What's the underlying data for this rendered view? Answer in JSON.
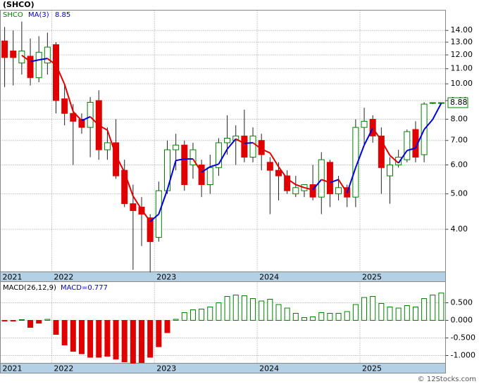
{
  "chart_data": [
    {
      "type": "candlestick",
      "title": "(SHCO)",
      "name": "SHCO",
      "categories": [
        "2021",
        null,
        null,
        null,
        null,
        null,
        "2022",
        null,
        null,
        null,
        null,
        null,
        null,
        null,
        null,
        null,
        null,
        null,
        "2023",
        null,
        null,
        null,
        null,
        null,
        null,
        null,
        null,
        null,
        null,
        null,
        "2024",
        null,
        null,
        null,
        null,
        null,
        null,
        null,
        null,
        null,
        null,
        null,
        "2025",
        null,
        null,
        null,
        null,
        null,
        null,
        null,
        null,
        null
      ],
      "open": [
        13.1,
        12.3,
        11.4,
        11.9,
        10.4,
        11.4,
        12.8,
        9.1,
        8.3,
        8.0,
        7.6,
        9.0,
        6.6,
        6.9,
        5.8,
        4.7,
        4.6,
        4.3,
        3.8,
        5.1,
        6.6,
        6.8,
        6.0,
        6.0,
        5.3,
        5.9,
        6.9,
        7.0,
        7.2,
        6.3,
        7.0,
        6.1,
        5.8,
        5.6,
        5.0,
        5.1,
        5.3,
        4.9,
        6.1,
        5.0,
        5.2,
        4.9,
        7.6,
        8.0,
        7.2,
        5.6,
        6.0,
        6.2,
        7.5,
        6.4,
        8.85,
        8.87
      ],
      "high": [
        14.3,
        14.0,
        14.8,
        13.3,
        13.5,
        13.8,
        13.0,
        10.0,
        8.8,
        8.3,
        9.2,
        9.6,
        7.6,
        8.0,
        6.2,
        5.3,
        4.9,
        4.4,
        5.4,
        7.0,
        7.3,
        7.0,
        6.9,
        6.2,
        6.4,
        7.1,
        8.2,
        7.7,
        8.5,
        7.6,
        7.3,
        6.3,
        6.1,
        5.8,
        5.6,
        5.3,
        6.0,
        6.5,
        6.2,
        5.6,
        5.3,
        8.0,
        8.6,
        8.2,
        7.6,
        6.3,
        6.6,
        7.5,
        7.9,
        8.9,
        8.9,
        8.9
      ],
      "low": [
        9.8,
        9.9,
        10.6,
        9.9,
        10.1,
        10.6,
        8.3,
        7.7,
        6.0,
        7.3,
        6.3,
        6.2,
        6.2,
        5.5,
        4.6,
        3.1,
        3.6,
        3.05,
        3.7,
        5.0,
        5.8,
        5.1,
        5.5,
        4.9,
        5.0,
        5.6,
        6.4,
        6.0,
        6.1,
        6.1,
        5.8,
        4.4,
        4.8,
        5.0,
        4.9,
        4.9,
        4.8,
        4.4,
        4.6,
        4.8,
        4.6,
        4.6,
        6.8,
        6.9,
        5.0,
        4.7,
        5.9,
        6.1,
        6.1,
        6.1,
        8.8,
        8.86
      ],
      "close": [
        11.8,
        11.8,
        12.3,
        10.4,
        12.2,
        12.6,
        9.0,
        8.3,
        7.9,
        7.6,
        8.9,
        6.6,
        6.9,
        5.6,
        4.7,
        4.5,
        4.4,
        3.7,
        5.1,
        6.6,
        6.8,
        5.3,
        6.6,
        5.3,
        5.9,
        6.9,
        7.1,
        7.2,
        6.3,
        7.2,
        6.4,
        5.8,
        5.6,
        5.1,
        5.2,
        5.3,
        4.9,
        6.2,
        5.0,
        5.2,
        4.9,
        7.6,
        7.9,
        7.2,
        5.9,
        6.0,
        6.3,
        7.4,
        6.3,
        8.8,
        8.88,
        8.88
      ],
      "up_color": "#008000",
      "down_color": "#e00000",
      "ma": {
        "name": "MA(3)",
        "up_color": "#0000dd",
        "down_color": "#e00000",
        "values": [
          null,
          null,
          11.97,
          11.5,
          11.63,
          11.73,
          11.27,
          9.97,
          8.4,
          7.93,
          8.13,
          7.7,
          7.47,
          6.37,
          5.73,
          4.93,
          4.53,
          4.2,
          4.4,
          5.13,
          6.17,
          6.23,
          6.23,
          5.73,
          5.93,
          6.03,
          6.63,
          7.07,
          6.87,
          6.9,
          6.63,
          6.47,
          5.93,
          5.5,
          5.3,
          5.2,
          5.13,
          5.47,
          5.37,
          5.47,
          5.03,
          5.9,
          6.8,
          7.57,
          7.0,
          6.37,
          6.07,
          6.57,
          6.67,
          7.5,
          7.99,
          8.85
        ]
      },
      "log_scale": true,
      "grid": true,
      "ylim": [
        3.06,
        15.9
      ],
      "yticks": [
        {
          "value": 4,
          "label": "4.00"
        },
        {
          "value": 5,
          "label": "5.00"
        },
        {
          "value": 6,
          "label": "6.00"
        },
        {
          "value": 7,
          "label": "7.00"
        },
        {
          "value": 8,
          "label": "8.00"
        },
        {
          "value": 9,
          "label": "9.00"
        },
        {
          "value": 10,
          "label": "10.00"
        },
        {
          "value": 11,
          "label": "11.00"
        },
        {
          "value": 12,
          "label": "12.00"
        },
        {
          "value": 13,
          "label": "13.00"
        },
        {
          "value": 14,
          "label": "14.00"
        }
      ]
    },
    {
      "type": "bar",
      "title": "MACD(26,12,9)",
      "value_label": "MACD=0.777",
      "categories": [
        "2021",
        null,
        null,
        null,
        null,
        null,
        "2022",
        null,
        null,
        null,
        null,
        null,
        null,
        null,
        null,
        null,
        null,
        null,
        "2023",
        null,
        null,
        null,
        null,
        null,
        null,
        null,
        null,
        null,
        null,
        null,
        "2024",
        null,
        null,
        null,
        null,
        null,
        null,
        null,
        null,
        null,
        null,
        null,
        "2025",
        null,
        null,
        null,
        null,
        null,
        null,
        null,
        null,
        null
      ],
      "values": [
        -0.01,
        -0.02,
        0.02,
        -0.2,
        -0.08,
        0.03,
        -0.4,
        -0.7,
        -0.88,
        -0.95,
        -1.05,
        -1.05,
        -1.02,
        -1.1,
        -1.18,
        -1.22,
        -1.2,
        -1.05,
        -0.75,
        -0.35,
        0.03,
        0.22,
        0.3,
        0.32,
        0.38,
        0.5,
        0.68,
        0.72,
        0.7,
        0.62,
        0.55,
        0.6,
        0.45,
        0.35,
        0.2,
        0.08,
        0.1,
        0.22,
        0.2,
        0.2,
        0.25,
        0.45,
        0.65,
        0.68,
        0.48,
        0.38,
        0.35,
        0.42,
        0.38,
        0.62,
        0.72,
        0.777
      ],
      "up_color": "#008000",
      "down_color": "#e00000",
      "grid": true,
      "ylim": [
        -1.22,
        1.1
      ],
      "yticks": [
        {
          "value": -1,
          "label": "-1.000"
        },
        {
          "value": -0.5,
          "label": "-0.500"
        },
        {
          "value": 0,
          "label": "0.000"
        },
        {
          "value": 0.5,
          "label": "0.500"
        }
      ]
    }
  ],
  "watermark": "© 12Stocks.com"
}
